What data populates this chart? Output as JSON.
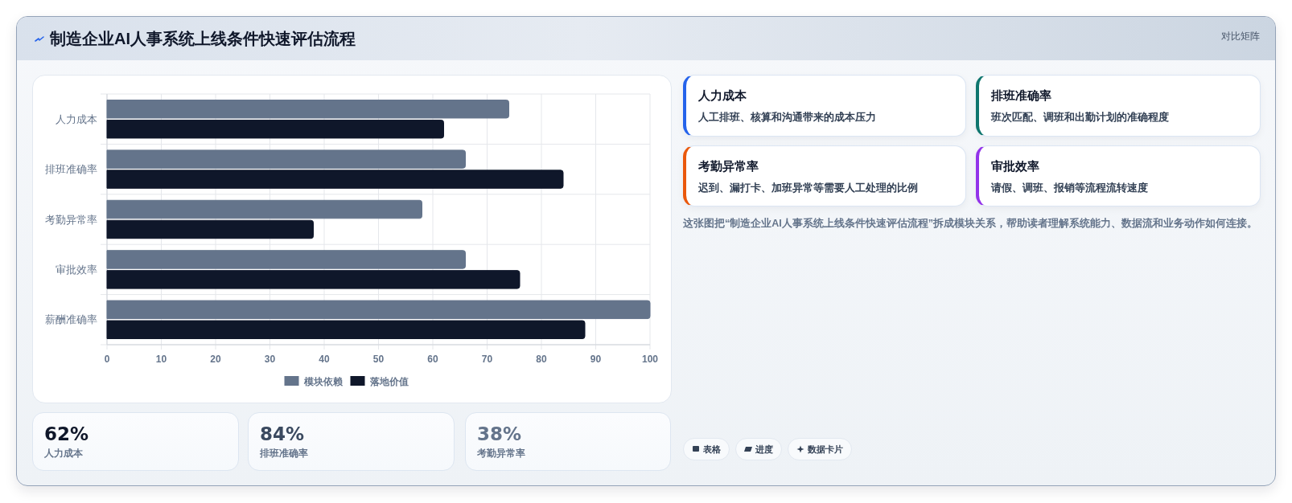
{
  "chart_data": {
    "type": "bar",
    "orientation": "horizontal",
    "title": "制造企业AI人事系统上线条件快速评估流程",
    "categories": [
      "人力成本",
      "排班准确率",
      "考勤异常率",
      "审批效率",
      "薪酬准确率"
    ],
    "series": [
      {
        "name": "模块依赖",
        "color": "#64748b",
        "values": [
          74,
          66,
          58,
          66,
          100
        ]
      },
      {
        "name": "落地价值",
        "color": "#0f172a",
        "values": [
          62,
          84,
          38,
          76,
          88
        ]
      }
    ],
    "xlim": [
      0,
      100
    ],
    "xticks": [
      0,
      10,
      20,
      30,
      40,
      50,
      60,
      70,
      80,
      90,
      100
    ],
    "grid": true,
    "legend": "bottom",
    "annotations": [
      "对比矩阵",
      "人力成本",
      "人工排班、核算和沟通带来的成本压力",
      "排班准确率",
      "班次匹配、调班和出勤计划的准确程度",
      "考勤异常率",
      "迟到、漏打卡、加班异常等需要人工处理的比例",
      "审批效率",
      "请假、调班、报销等流程流转速度",
      "这张图把“制造企业AI人事系统上线条件快速评估流程”拆成模块关系，帮助读者理解系统能力、数据流和业务动作如何连接。",
      "62%",
      "人力成本",
      "84%",
      "排班准确率",
      "38%",
      "考勤异常率",
      "表格",
      "进度",
      "数据卡片"
    ]
  }
}
